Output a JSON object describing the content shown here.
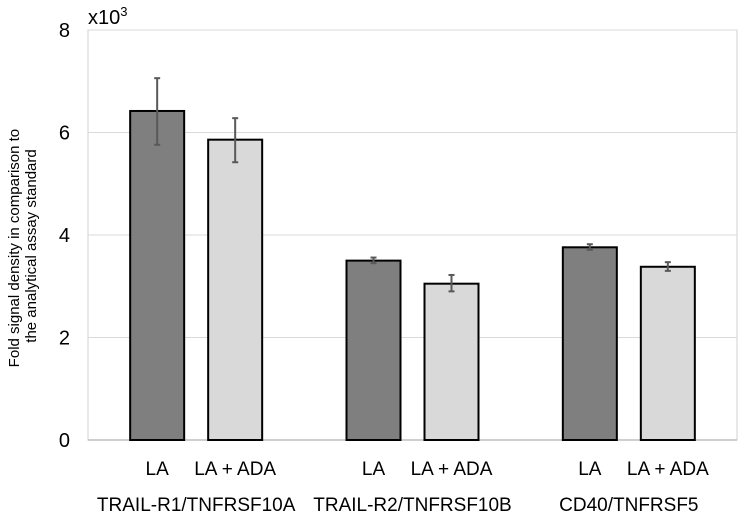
{
  "chart_data": {
    "type": "bar",
    "title": "",
    "multiplier_label": "x10",
    "multiplier_exponent": "3",
    "ylabel_lines": [
      "Fold signal density in comparison to",
      "the analytical assay standard"
    ],
    "xlabel": "",
    "ylim": [
      0,
      8
    ],
    "yticks": [
      0,
      2,
      4,
      6,
      8
    ],
    "grid": true,
    "groups": [
      {
        "label": "TRAIL-R1/TNFRSF10A",
        "bars": [
          {
            "label": "LA",
            "value": 6.42,
            "err_low": 5.76,
            "err_high": 7.06,
            "color": "#7f7f7f"
          },
          {
            "label": "LA + ADA",
            "value": 5.86,
            "err_low": 5.42,
            "err_high": 6.28,
            "color": "#d9d9d9"
          }
        ]
      },
      {
        "label": "TRAIL-R2/TNFRSF10B",
        "bars": [
          {
            "label": "LA",
            "value": 3.5,
            "err_low": 3.45,
            "err_high": 3.56,
            "color": "#7f7f7f"
          },
          {
            "label": "LA + ADA",
            "value": 3.05,
            "err_low": 2.9,
            "err_high": 3.22,
            "color": "#d9d9d9"
          }
        ]
      },
      {
        "label": "CD40/TNFRSF5",
        "bars": [
          {
            "label": "LA",
            "value": 3.76,
            "err_low": 3.71,
            "err_high": 3.82,
            "color": "#7f7f7f"
          },
          {
            "label": "LA + ADA",
            "value": 3.38,
            "err_low": 3.3,
            "err_high": 3.47,
            "color": "#d9d9d9"
          }
        ]
      }
    ]
  }
}
